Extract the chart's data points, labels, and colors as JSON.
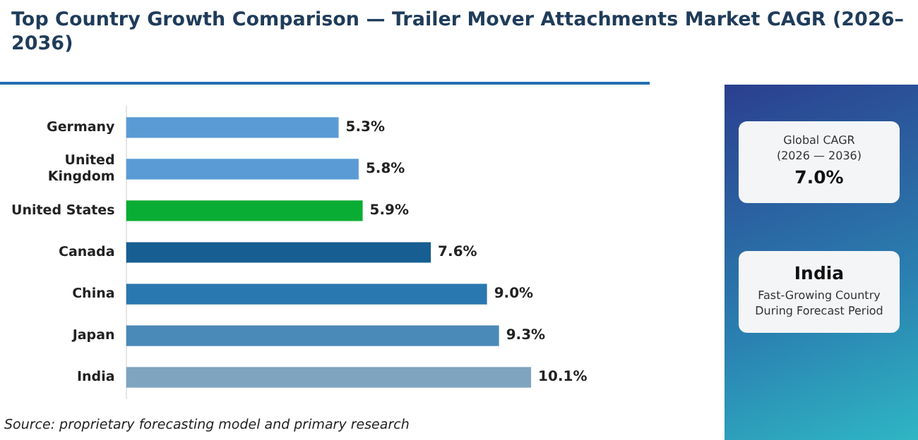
{
  "chart_data": {
    "type": "bar",
    "orientation": "horizontal",
    "title": "Top Country Growth Comparison — Trailer Mover Attachments Market CAGR (2026–2036)",
    "categories": [
      "Germany",
      "United Kingdom",
      "United States",
      "Canada",
      "China",
      "Japan",
      "India"
    ],
    "values": [
      5.3,
      5.8,
      5.9,
      7.6,
      9.0,
      9.3,
      10.1
    ],
    "colors": [
      "#5b9bd5",
      "#5b9bd5",
      "#0aad33",
      "#175e92",
      "#2a78b0",
      "#4a8ab8",
      "#7fa4c0"
    ],
    "value_labels": [
      "5.3%",
      "5.8%",
      "5.9%",
      "7.6%",
      "9.0%",
      "9.3%",
      "10.1%"
    ],
    "annotations": [
      "Global CAGR",
      "(2026 — 2036)",
      "7.0%",
      "India",
      "Fast-Growing Country",
      "During Forecast Period",
      "Source: proprietary forecasting model and primary research"
    ],
    "grid": false,
    "legend": false
  }
}
